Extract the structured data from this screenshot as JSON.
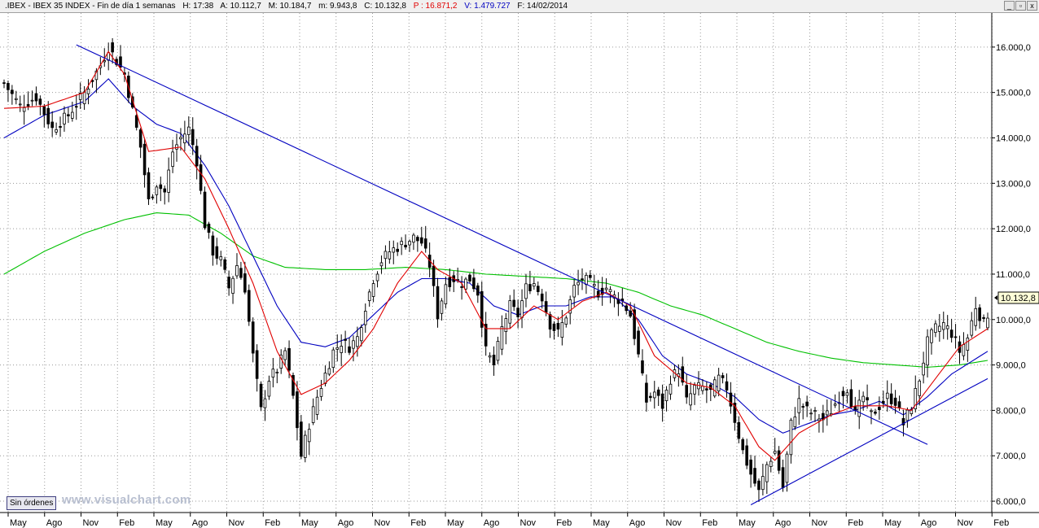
{
  "header": {
    "symbol": ".IBEX - IBEX 35 INDEX - Fin de día 1 semanas",
    "high": "H: 17:38",
    "open": "A: 10.112,7",
    "max": "M: 10.184,7",
    "min": "m: 9.943,8",
    "close": "C: 10.132,8",
    "p": "P : 16.871,2",
    "vol": "V: 1.479.727",
    "date": "F: 14/02/2014"
  },
  "window_buttons": [
    "_",
    "▫",
    "x"
  ],
  "footer": {
    "orders_button": "Sin órdenes",
    "watermark": "www.visualchart.com"
  },
  "chart_data": {
    "type": "candlestick",
    "price_label": "10.132,8",
    "y_ticks": [
      "16.000,0",
      "15.000,0",
      "14.000,0",
      "13.000,0",
      "12.000,0",
      "11.000,0",
      "10.000,0",
      "9.000,0",
      "8.000,0",
      "7.000,0",
      "6.000,0"
    ],
    "ylim": [
      5750,
      16750
    ],
    "x_ticks": [
      "May",
      "Ago",
      "Nov",
      "Feb",
      "May",
      "Ago",
      "Nov",
      "Feb",
      "May",
      "Ago",
      "Nov",
      "Feb",
      "May",
      "Ago",
      "Nov",
      "Feb",
      "May",
      "Ago",
      "Nov",
      "Feb",
      "May",
      "Ago",
      "Nov",
      "Feb",
      "May",
      "Ago",
      "Nov",
      "Feb"
    ],
    "colors": {
      "candles": "#000000",
      "ma_short": "#e00000",
      "ma_mid": "#0000c0",
      "ma_long": "#00c000",
      "trendline": "#0000c0",
      "grid": "#9a9a9a"
    },
    "anchors": {
      "close": [
        [
          0,
          15200
        ],
        [
          4,
          14700
        ],
        [
          8,
          14900
        ],
        [
          12,
          14200
        ],
        [
          16,
          14500
        ],
        [
          20,
          15000
        ],
        [
          24,
          15600
        ],
        [
          26,
          16000
        ],
        [
          30,
          15400
        ],
        [
          32,
          14600
        ],
        [
          34,
          13800
        ],
        [
          36,
          12600
        ],
        [
          38,
          13000
        ],
        [
          40,
          12800
        ],
        [
          42,
          13700
        ],
        [
          44,
          14000
        ],
        [
          46,
          14200
        ],
        [
          48,
          13500
        ],
        [
          50,
          12100
        ],
        [
          52,
          11500
        ],
        [
          54,
          11300
        ],
        [
          56,
          10700
        ],
        [
          58,
          11200
        ],
        [
          60,
          10700
        ],
        [
          62,
          9200
        ],
        [
          64,
          8000
        ],
        [
          66,
          8700
        ],
        [
          68,
          8900
        ],
        [
          70,
          9300
        ],
        [
          72,
          8300
        ],
        [
          74,
          7000
        ],
        [
          76,
          7700
        ],
        [
          78,
          8300
        ],
        [
          80,
          8800
        ],
        [
          82,
          9300
        ],
        [
          84,
          9500
        ],
        [
          86,
          9400
        ],
        [
          88,
          9600
        ],
        [
          90,
          10300
        ],
        [
          92,
          10900
        ],
        [
          94,
          11300
        ],
        [
          96,
          11500
        ],
        [
          98,
          11600
        ],
        [
          100,
          11700
        ],
        [
          102,
          11800
        ],
        [
          104,
          11700
        ],
        [
          106,
          11200
        ],
        [
          108,
          10100
        ],
        [
          110,
          10800
        ],
        [
          112,
          10900
        ],
        [
          114,
          10800
        ],
        [
          116,
          10900
        ],
        [
          118,
          10600
        ],
        [
          120,
          9300
        ],
        [
          122,
          9000
        ],
        [
          124,
          9800
        ],
        [
          126,
          10300
        ],
        [
          128,
          10100
        ],
        [
          130,
          10700
        ],
        [
          132,
          10800
        ],
        [
          134,
          10500
        ],
        [
          136,
          9900
        ],
        [
          138,
          9700
        ],
        [
          140,
          10100
        ],
        [
          142,
          10700
        ],
        [
          144,
          10900
        ],
        [
          146,
          10800
        ],
        [
          148,
          10600
        ],
        [
          150,
          10700
        ],
        [
          152,
          10500
        ],
        [
          154,
          10400
        ],
        [
          156,
          10100
        ],
        [
          158,
          9200
        ],
        [
          160,
          8200
        ],
        [
          162,
          8400
        ],
        [
          164,
          8100
        ],
        [
          166,
          8700
        ],
        [
          168,
          8900
        ],
        [
          170,
          8200
        ],
        [
          172,
          8500
        ],
        [
          174,
          8500
        ],
        [
          176,
          8400
        ],
        [
          178,
          8700
        ],
        [
          180,
          8500
        ],
        [
          182,
          7800
        ],
        [
          184,
          7100
        ],
        [
          186,
          6600
        ],
        [
          188,
          6200
        ],
        [
          190,
          6800
        ],
        [
          192,
          7100
        ],
        [
          194,
          6300
        ],
        [
          196,
          7700
        ],
        [
          198,
          8200
        ],
        [
          200,
          8000
        ],
        [
          202,
          7900
        ],
        [
          204,
          7800
        ],
        [
          206,
          8000
        ],
        [
          208,
          8300
        ],
        [
          210,
          8500
        ],
        [
          212,
          7900
        ],
        [
          214,
          8300
        ],
        [
          216,
          7900
        ],
        [
          218,
          8100
        ],
        [
          220,
          8300
        ],
        [
          222,
          8200
        ],
        [
          224,
          7700
        ],
        [
          226,
          8100
        ],
        [
          228,
          8700
        ],
        [
          230,
          9500
        ],
        [
          232,
          9800
        ],
        [
          234,
          9900
        ],
        [
          236,
          9700
        ],
        [
          238,
          9300
        ],
        [
          240,
          9600
        ],
        [
          242,
          10300
        ],
        [
          244,
          9900
        ],
        [
          245,
          10130
        ]
      ],
      "ma_short": [
        [
          0,
          14650
        ],
        [
          10,
          14700
        ],
        [
          20,
          15000
        ],
        [
          26,
          15900
        ],
        [
          30,
          15400
        ],
        [
          36,
          13700
        ],
        [
          44,
          13800
        ],
        [
          50,
          13100
        ],
        [
          56,
          12000
        ],
        [
          62,
          10800
        ],
        [
          68,
          9300
        ],
        [
          74,
          8350
        ],
        [
          80,
          8600
        ],
        [
          86,
          9100
        ],
        [
          92,
          9800
        ],
        [
          98,
          10800
        ],
        [
          104,
          11500
        ],
        [
          108,
          11100
        ],
        [
          114,
          10800
        ],
        [
          120,
          9800
        ],
        [
          126,
          9800
        ],
        [
          132,
          10300
        ],
        [
          138,
          10000
        ],
        [
          144,
          10400
        ],
        [
          150,
          10600
        ],
        [
          156,
          10300
        ],
        [
          162,
          9200
        ],
        [
          170,
          8600
        ],
        [
          176,
          8500
        ],
        [
          182,
          8100
        ],
        [
          188,
          7200
        ],
        [
          192,
          6900
        ],
        [
          198,
          7500
        ],
        [
          206,
          7900
        ],
        [
          212,
          8100
        ],
        [
          220,
          8100
        ],
        [
          226,
          8000
        ],
        [
          232,
          8700
        ],
        [
          238,
          9400
        ],
        [
          245,
          9800
        ]
      ],
      "ma_mid": [
        [
          0,
          14000
        ],
        [
          10,
          14500
        ],
        [
          20,
          14800
        ],
        [
          26,
          15300
        ],
        [
          32,
          14700
        ],
        [
          38,
          14300
        ],
        [
          44,
          14100
        ],
        [
          50,
          13400
        ],
        [
          56,
          12500
        ],
        [
          62,
          11400
        ],
        [
          68,
          10300
        ],
        [
          74,
          9500
        ],
        [
          80,
          9400
        ],
        [
          86,
          9600
        ],
        [
          92,
          10100
        ],
        [
          98,
          10600
        ],
        [
          104,
          10900
        ],
        [
          110,
          10900
        ],
        [
          116,
          10800
        ],
        [
          122,
          10300
        ],
        [
          128,
          10100
        ],
        [
          134,
          10300
        ],
        [
          140,
          10300
        ],
        [
          146,
          10500
        ],
        [
          152,
          10500
        ],
        [
          158,
          10000
        ],
        [
          164,
          9200
        ],
        [
          170,
          8800
        ],
        [
          176,
          8600
        ],
        [
          182,
          8300
        ],
        [
          188,
          7800
        ],
        [
          194,
          7500
        ],
        [
          200,
          7700
        ],
        [
          206,
          7900
        ],
        [
          212,
          8000
        ],
        [
          218,
          8200
        ],
        [
          224,
          7900
        ],
        [
          230,
          8300
        ],
        [
          236,
          8800
        ],
        [
          245,
          9300
        ]
      ],
      "ma_long": [
        [
          0,
          11000
        ],
        [
          10,
          11500
        ],
        [
          20,
          11900
        ],
        [
          30,
          12200
        ],
        [
          38,
          12350
        ],
        [
          46,
          12300
        ],
        [
          54,
          11900
        ],
        [
          62,
          11400
        ],
        [
          70,
          11150
        ],
        [
          80,
          11100
        ],
        [
          90,
          11100
        ],
        [
          100,
          11150
        ],
        [
          110,
          11100
        ],
        [
          120,
          11000
        ],
        [
          130,
          10950
        ],
        [
          140,
          10900
        ],
        [
          150,
          10800
        ],
        [
          158,
          10600
        ],
        [
          166,
          10300
        ],
        [
          174,
          10100
        ],
        [
          182,
          9800
        ],
        [
          190,
          9500
        ],
        [
          198,
          9300
        ],
        [
          206,
          9150
        ],
        [
          214,
          9050
        ],
        [
          222,
          9000
        ],
        [
          230,
          8950
        ],
        [
          238,
          9000
        ],
        [
          245,
          9100
        ]
      ]
    },
    "trendlines": [
      {
        "from": [
          18,
          16050
        ],
        "to": [
          230,
          7250
        ]
      },
      {
        "from": [
          186,
          5920
        ],
        "to": [
          245,
          8700
        ]
      }
    ]
  }
}
